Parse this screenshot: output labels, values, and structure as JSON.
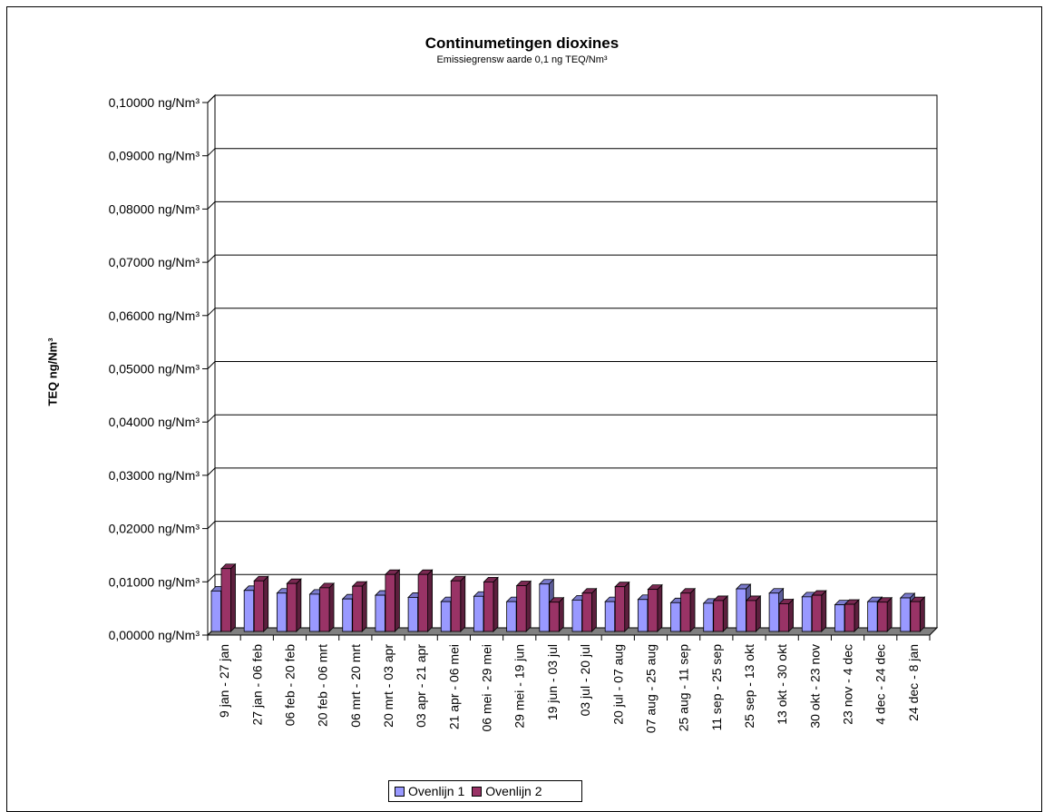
{
  "chart_data": {
    "type": "bar",
    "title": "Continumetingen dioxines",
    "subtitle": "Emissiegrensw aarde 0,1 ng TEQ/Nm³",
    "ylabel": "TEQ ng/Nm³",
    "xlabel": "",
    "ylim": [
      0,
      0.1
    ],
    "yticks": [
      "0,00000 ng/Nm³",
      "0,01000 ng/Nm³",
      "0,02000 ng/Nm³",
      "0,03000 ng/Nm³",
      "0,04000 ng/Nm³",
      "0,05000 ng/Nm³",
      "0,06000 ng/Nm³",
      "0,07000 ng/Nm³",
      "0,08000 ng/Nm³",
      "0,09000 ng/Nm³",
      "0,10000 ng/Nm³"
    ],
    "grid": true,
    "legend_position": "bottom",
    "categories": [
      "9 jan - 27 jan",
      "27 jan - 06 feb",
      "06 feb - 20 feb",
      "20 feb - 06 mrt",
      "06 mrt - 20 mrt",
      "20 mrt - 03 apr",
      "03 apr - 21 apr",
      "21 apr - 06 mei",
      "06 mei - 29 mei",
      "29 mei - 19 jun",
      "19 jun - 03 jul",
      "03 jul - 20 jul",
      "20 jul - 07 aug",
      "07 aug - 25 aug",
      "25 aug - 11 sep",
      "11 sep - 25 sep",
      "25 sep - 13 okt",
      "13 okt - 30 okt",
      "30 okt - 23 nov",
      "23 nov - 4 dec",
      "4 dec - 24 dec",
      "24 dec - 8 jan"
    ],
    "series": [
      {
        "name": "Ovenlijn 1",
        "color": "#9999ff",
        "values": [
          0.0076,
          0.0077,
          0.0072,
          0.007,
          0.0061,
          0.0068,
          0.0064,
          0.0056,
          0.0066,
          0.0056,
          0.0089,
          0.0059,
          0.0056,
          0.006,
          0.0054,
          0.0053,
          0.008,
          0.0072,
          0.0065,
          0.005,
          0.0056,
          0.0063
        ]
      },
      {
        "name": "Ovenlijn 2",
        "color": "#993366",
        "values": [
          0.0118,
          0.0095,
          0.009,
          0.0082,
          0.0085,
          0.0107,
          0.0107,
          0.0095,
          0.0093,
          0.0086,
          0.0055,
          0.0072,
          0.0084,
          0.0079,
          0.0072,
          0.0058,
          0.0058,
          0.0052,
          0.0068,
          0.0051,
          0.0055,
          0.0056
        ]
      }
    ]
  }
}
